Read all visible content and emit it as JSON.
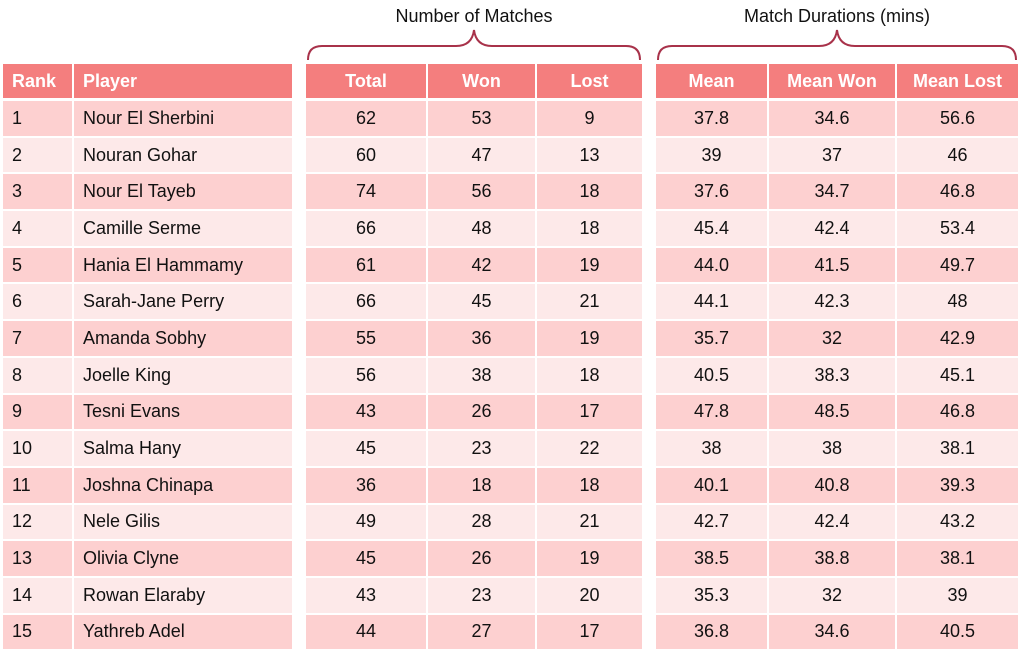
{
  "chart_data": {
    "type": "table",
    "group_headers": {
      "matches": "Number of Matches",
      "durations": "Match Durations (mins)"
    },
    "columns": {
      "rank": "Rank",
      "player": "Player",
      "total": "Total",
      "won": "Won",
      "lost": "Lost",
      "mean": "Mean",
      "mean_won": "Mean Won",
      "mean_lost": "Mean Lost"
    },
    "rows": [
      {
        "rank": "1",
        "player": "Nour El Sherbini",
        "total": "62",
        "won": "53",
        "lost": "9",
        "mean": "37.8",
        "mean_won": "34.6",
        "mean_lost": "56.6"
      },
      {
        "rank": "2",
        "player": "Nouran Gohar",
        "total": "60",
        "won": "47",
        "lost": "13",
        "mean": "39",
        "mean_won": "37",
        "mean_lost": "46"
      },
      {
        "rank": "3",
        "player": "Nour El Tayeb",
        "total": "74",
        "won": "56",
        "lost": "18",
        "mean": "37.6",
        "mean_won": "34.7",
        "mean_lost": "46.8"
      },
      {
        "rank": "4",
        "player": "Camille Serme",
        "total": "66",
        "won": "48",
        "lost": "18",
        "mean": "45.4",
        "mean_won": "42.4",
        "mean_lost": "53.4"
      },
      {
        "rank": "5",
        "player": "Hania El Hammamy",
        "total": "61",
        "won": "42",
        "lost": "19",
        "mean": "44.0",
        "mean_won": "41.5",
        "mean_lost": "49.7"
      },
      {
        "rank": "6",
        "player": "Sarah-Jane Perry",
        "total": "66",
        "won": "45",
        "lost": "21",
        "mean": "44.1",
        "mean_won": "42.3",
        "mean_lost": "48"
      },
      {
        "rank": "7",
        "player": "Amanda Sobhy",
        "total": "55",
        "won": "36",
        "lost": "19",
        "mean": "35.7",
        "mean_won": "32",
        "mean_lost": "42.9"
      },
      {
        "rank": "8",
        "player": "Joelle King",
        "total": "56",
        "won": "38",
        "lost": "18",
        "mean": "40.5",
        "mean_won": "38.3",
        "mean_lost": "45.1"
      },
      {
        "rank": "9",
        "player": "Tesni Evans",
        "total": "43",
        "won": "26",
        "lost": "17",
        "mean": "47.8",
        "mean_won": "48.5",
        "mean_lost": "46.8"
      },
      {
        "rank": "10",
        "player": "Salma Hany",
        "total": "45",
        "won": "23",
        "lost": "22",
        "mean": "38",
        "mean_won": "38",
        "mean_lost": "38.1"
      },
      {
        "rank": "11",
        "player": "Joshna Chinapa",
        "total": "36",
        "won": "18",
        "lost": "18",
        "mean": "40.1",
        "mean_won": "40.8",
        "mean_lost": "39.3"
      },
      {
        "rank": "12",
        "player": "Nele Gilis",
        "total": "49",
        "won": "28",
        "lost": "21",
        "mean": "42.7",
        "mean_won": "42.4",
        "mean_lost": "43.2"
      },
      {
        "rank": "13",
        "player": "Olivia Clyne",
        "total": "45",
        "won": "26",
        "lost": "19",
        "mean": "38.5",
        "mean_won": "38.8",
        "mean_lost": "38.1"
      },
      {
        "rank": "14",
        "player": "Rowan Elaraby",
        "total": "43",
        "won": "23",
        "lost": "20",
        "mean": "35.3",
        "mean_won": "32",
        "mean_lost": "39"
      },
      {
        "rank": "15",
        "player": "Yathreb Adel",
        "total": "44",
        "won": "27",
        "lost": "17",
        "mean": "36.8",
        "mean_won": "34.6",
        "mean_lost": "40.5"
      }
    ],
    "colors": {
      "header": "#f47e7e",
      "row_odd": "#fdd0d0",
      "row_even": "#fde9e9",
      "brace": "#a8324a"
    }
  }
}
